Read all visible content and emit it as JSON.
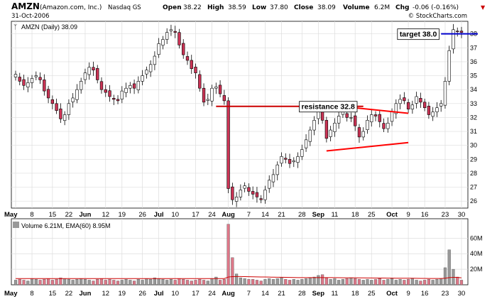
{
  "header": {
    "symbol": "AMZN",
    "company": "(Amazon.com, Inc.)",
    "exchange": "Nasdaq GS",
    "date": "31-Oct-2006",
    "open_label": "Open",
    "open": "38.22",
    "high_label": "High",
    "high": "38.59",
    "low_label": "Low",
    "low": "37.80",
    "close_label": "Close",
    "close": "38.09",
    "volume_label": "Volume",
    "volume": "6.2M",
    "chg_label": "Chg",
    "chg": "-0.06 (-0.16%)",
    "watermark": "© StockCharts.com"
  },
  "chart_data": [
    {
      "type": "candlestick",
      "legend": "AMZN (Daily) 38.09",
      "x_tick_labels": [
        "May",
        "8",
        "15",
        "22",
        "Jun",
        "12",
        "19",
        "26",
        "Jul",
        "10",
        "17",
        "24",
        "Aug",
        "7",
        "14",
        "21",
        "28",
        "Sep",
        "11",
        "18",
        "25",
        "Oct",
        "9",
        "16",
        "23",
        "30"
      ],
      "y_ticks": [
        26,
        27,
        28,
        29,
        30,
        31,
        32,
        33,
        34,
        35,
        36,
        37,
        38
      ],
      "ylim": [
        25.5,
        38.9
      ],
      "grid": true,
      "closes": [
        34.9,
        34.6,
        34.3,
        34.5,
        34.8,
        35.0,
        34.7,
        33.9,
        33.4,
        33.0,
        32.5,
        31.9,
        32.2,
        33.0,
        33.4,
        34.0,
        34.6,
        35.2,
        35.6,
        35.4,
        34.7,
        34.0,
        33.8,
        33.5,
        33.3,
        33.2,
        33.9,
        34.1,
        34.3,
        34.1,
        34.6,
        35.0,
        35.4,
        35.8,
        36.4,
        37.3,
        37.6,
        38.1,
        38.3,
        38.1,
        37.2,
        36.5,
        36.1,
        35.5,
        35.2,
        34.1,
        33.1,
        33.3,
        34.1,
        34.2,
        33.7,
        33.2,
        26.9,
        26.1,
        26.3,
        26.8,
        27.1,
        26.7,
        26.5,
        26.3,
        26.1,
        26.8,
        27.5,
        27.9,
        28.6,
        29.2,
        29.0,
        28.7,
        28.9,
        29.2,
        29.7,
        30.4,
        31.1,
        31.8,
        32.6,
        31.8,
        30.5,
        31.1,
        31.6,
        32.1,
        32.4,
        32.0,
        32.0,
        31.4,
        30.6,
        31.0,
        31.8,
        32.2,
        32.1,
        31.7,
        31.2,
        31.6,
        32.4,
        33.0,
        33.3,
        33.2,
        32.6,
        32.9,
        33.5,
        33.1,
        32.7,
        32.2,
        32.4,
        32.7,
        33.0,
        34.6,
        36.8,
        38.3,
        38.2,
        38.1
      ],
      "trendlines": [
        {
          "from": [
            49,
            32.8
          ],
          "to": [
            85,
            32.8
          ],
          "color": "#cc0000"
        },
        {
          "from": [
            104,
            38.0
          ],
          "to": [
            113,
            38.0
          ],
          "color": "#0000cc"
        },
        {
          "from": [
            76,
            32.9
          ],
          "to": [
            96,
            32.3
          ],
          "color": "#ff0000"
        },
        {
          "from": [
            76,
            29.6
          ],
          "to": [
            96,
            30.2
          ],
          "color": "#ff0000"
        }
      ],
      "annotations": [
        {
          "text": "resistance 32.8",
          "color": "#cc0000",
          "at_bar": 69,
          "price": 32.8
        },
        {
          "text": "target 38.0",
          "color": "#0000cc",
          "at_bar": 93,
          "price": 38.0
        }
      ]
    },
    {
      "type": "bar",
      "legend": "Volume 6.21M, EMA(60) 8.95M",
      "y_tick_labels": [
        "60M",
        "40M",
        "20M"
      ],
      "y_ticks": [
        20,
        40,
        60
      ],
      "ylim": [
        0,
        85
      ],
      "units": "M",
      "volumes": [
        6,
        7,
        6,
        5,
        8,
        7,
        6,
        7,
        8,
        6,
        7,
        9,
        8,
        7,
        6,
        7,
        8,
        7,
        6,
        5,
        7,
        8,
        6,
        7,
        6,
        5,
        6,
        7,
        6,
        5,
        7,
        6,
        8,
        7,
        9,
        8,
        7,
        6,
        7,
        6,
        8,
        7,
        6,
        5,
        6,
        7,
        6,
        5,
        8,
        10,
        6,
        7,
        78,
        35,
        14,
        9,
        8,
        7,
        7,
        6,
        5,
        7,
        8,
        7,
        8,
        9,
        7,
        6,
        7,
        6,
        7,
        8,
        9,
        10,
        12,
        13,
        9,
        7,
        8,
        6,
        7,
        8,
        9,
        8,
        7,
        6,
        7,
        6,
        7,
        8,
        6,
        7,
        8,
        6,
        7,
        6,
        7,
        8,
        6,
        5,
        6,
        7,
        6,
        7,
        8,
        22,
        45,
        20,
        10,
        6
      ],
      "ema": [
        8,
        8,
        8,
        8,
        8,
        8,
        8,
        8,
        8,
        8,
        8,
        8,
        8,
        8,
        8,
        8,
        8,
        8,
        8,
        8,
        8,
        8,
        8,
        8,
        8,
        8,
        8,
        8,
        8,
        8,
        8,
        8,
        8,
        8,
        8,
        8,
        8,
        8,
        8,
        8,
        8,
        8,
        8,
        8,
        8,
        8,
        8,
        8,
        8,
        8,
        8,
        8,
        10,
        10.5,
        10.6,
        10.6,
        10.5,
        10.4,
        10.3,
        10.2,
        10.1,
        10,
        9.9,
        9.8,
        9.7,
        9.7,
        9.6,
        9.5,
        9.4,
        9.3,
        9.2,
        9.2,
        9.2,
        9.2,
        9.2,
        9.3,
        9.3,
        9.2,
        9.2,
        9.1,
        9,
        9,
        9,
        9,
        8.9,
        8.9,
        8.8,
        8.8,
        8.7,
        8.7,
        8.7,
        8.6,
        8.6,
        8.5,
        8.5,
        8.4,
        8.4,
        8.4,
        8.3,
        8.2,
        8.2,
        8.1,
        8.1,
        8.1,
        8.1,
        8.5,
        9.3,
        9.6,
        9.6,
        8.95
      ]
    }
  ]
}
